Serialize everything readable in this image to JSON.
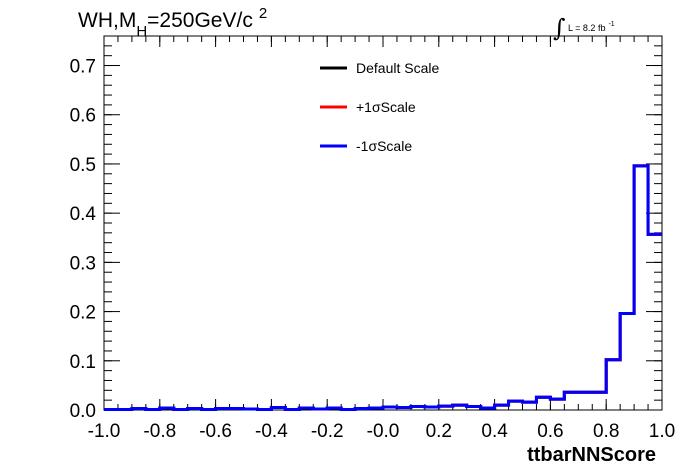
{
  "chart_data": {
    "type": "line",
    "title": "WH,M",
    "title_sub": "H",
    "title_rest": "=250GeV/c",
    "title_sup": "2",
    "lumi_prefix": "L = 8.2 fb",
    "lumi_sup": "-1",
    "xlabel": "ttbarNNScore",
    "xlim": [
      -1.0,
      1.0
    ],
    "ylim": [
      0.0,
      0.76
    ],
    "x_ticks": [
      "-1.0",
      "-0.8",
      "-0.6",
      "-0.4",
      "-0.2",
      "-0.0",
      "0.2",
      "0.4",
      "0.6",
      "0.8",
      "1.0"
    ],
    "x_tick_values": [
      -1.0,
      -0.8,
      -0.6,
      -0.4,
      -0.2,
      0.0,
      0.2,
      0.4,
      0.6,
      0.8,
      1.0
    ],
    "y_ticks": [
      "0.0",
      "0.1",
      "0.2",
      "0.3",
      "0.4",
      "0.5",
      "0.6",
      "0.7"
    ],
    "y_tick_values": [
      0.0,
      0.1,
      0.2,
      0.3,
      0.4,
      0.5,
      0.6,
      0.7
    ],
    "bin_edges": [
      -1.0,
      -0.95,
      -0.9,
      -0.85,
      -0.8,
      -0.75,
      -0.7,
      -0.65,
      -0.6,
      -0.55,
      -0.5,
      -0.45,
      -0.4,
      -0.35,
      -0.3,
      -0.25,
      -0.2,
      -0.15,
      -0.1,
      -0.05,
      0.0,
      0.05,
      0.1,
      0.15,
      0.2,
      0.25,
      0.3,
      0.35,
      0.4,
      0.45,
      0.5,
      0.55,
      0.6,
      0.65,
      0.7,
      0.75,
      0.8,
      0.85,
      0.9,
      0.95,
      1.0
    ],
    "series": [
      {
        "name": "Default Scale",
        "color": "#000000",
        "values": [
          0.001,
          0.001,
          0.003,
          0.001,
          0.004,
          0.001,
          0.003,
          0.001,
          0.003,
          0.003,
          0.002,
          0.001,
          0.005,
          0.001,
          0.004,
          0.002,
          0.004,
          0.001,
          0.003,
          0.004,
          0.006,
          0.005,
          0.007,
          0.006,
          0.008,
          0.01,
          0.007,
          0.004,
          0.01,
          0.018,
          0.016,
          0.026,
          0.022,
          0.036,
          0.036,
          0.036,
          0.102,
          0.196,
          0.496,
          0.357
        ]
      },
      {
        "name": "+1σScale",
        "color": "#ff0000",
        "values": [
          0.001,
          0.001,
          0.003,
          0.001,
          0.004,
          0.001,
          0.003,
          0.001,
          0.003,
          0.003,
          0.002,
          0.001,
          0.005,
          0.001,
          0.004,
          0.002,
          0.004,
          0.001,
          0.003,
          0.004,
          0.006,
          0.005,
          0.007,
          0.006,
          0.008,
          0.01,
          0.007,
          0.004,
          0.01,
          0.018,
          0.016,
          0.026,
          0.022,
          0.036,
          0.036,
          0.036,
          0.102,
          0.196,
          0.496,
          0.357
        ]
      },
      {
        "name": "-1σScale",
        "color": "#0000ff",
        "values": [
          0.001,
          0.001,
          0.003,
          0.001,
          0.004,
          0.001,
          0.003,
          0.001,
          0.003,
          0.003,
          0.002,
          0.001,
          0.005,
          0.001,
          0.004,
          0.002,
          0.004,
          0.001,
          0.003,
          0.004,
          0.006,
          0.005,
          0.007,
          0.006,
          0.008,
          0.01,
          0.007,
          0.004,
          0.01,
          0.018,
          0.016,
          0.026,
          0.022,
          0.036,
          0.036,
          0.036,
          0.102,
          0.196,
          0.496,
          0.357
        ]
      }
    ],
    "legend": {
      "entries": [
        {
          "label": "Default Scale",
          "color": "#000000"
        },
        {
          "label": "+1σScale",
          "color": "#ff0000"
        },
        {
          "label": "-1σScale",
          "color": "#0000ff"
        }
      ]
    },
    "grid": false
  }
}
